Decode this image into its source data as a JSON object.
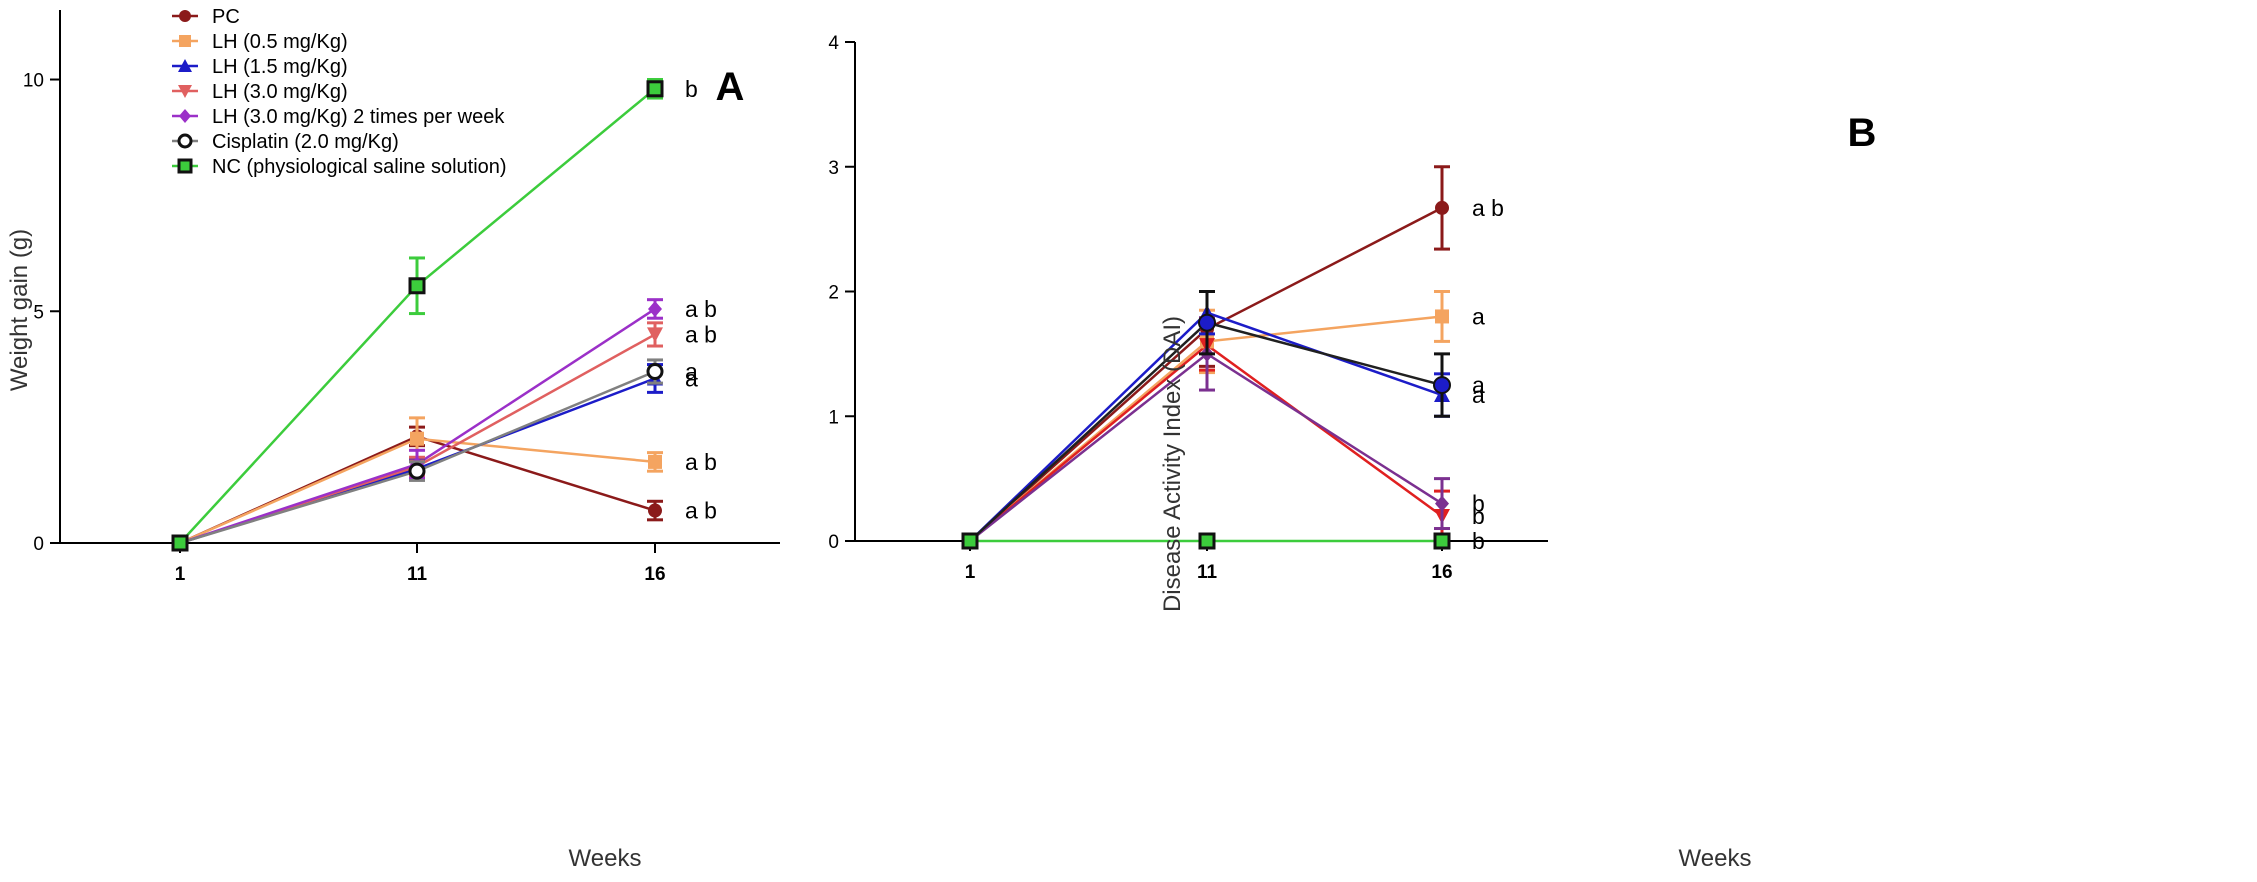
{
  "chart_data": [
    {
      "type": "line",
      "panel": "A",
      "title": "A",
      "xlabel": "Weeks",
      "ylabel": "Weight gain (g)",
      "x": [
        "1",
        "11",
        "16"
      ],
      "ylim": [
        0,
        11.5
      ],
      "yticks": [
        0,
        5,
        10
      ],
      "legend_position": "top-left",
      "series": [
        {
          "name": "PC",
          "color": "#8b1a1a",
          "marker": "circle",
          "values": [
            0,
            2.3,
            0.7
          ],
          "errors": [
            0,
            0.2,
            0.2
          ],
          "letters": [
            "",
            "",
            "a b"
          ]
        },
        {
          "name": "LH (0.5 mg/Kg)",
          "color": "#f4a460",
          "marker": "square",
          "values": [
            0,
            2.25,
            1.75
          ],
          "errors": [
            0,
            0.45,
            0.2
          ],
          "letters": [
            "",
            "",
            "a b"
          ]
        },
        {
          "name": "LH (1.5 mg/Kg)",
          "color": "#1c1cc8",
          "marker": "triangle-up",
          "values": [
            0,
            1.6,
            3.55
          ],
          "errors": [
            0,
            0.2,
            0.3
          ],
          "letters": [
            "",
            "",
            "a"
          ]
        },
        {
          "name": "LH (3.0 mg/Kg)",
          "color": "#e06060",
          "marker": "triangle-down",
          "values": [
            0,
            1.65,
            4.5
          ],
          "errors": [
            0,
            0.2,
            0.25
          ],
          "letters": [
            "",
            "",
            "a b"
          ]
        },
        {
          "name": "LH (3.0 mg/Kg) 2 times per week",
          "color": "#9b30c8",
          "marker": "diamond",
          "values": [
            0,
            1.7,
            5.05
          ],
          "errors": [
            0,
            0.3,
            0.2
          ],
          "letters": [
            "",
            "",
            "a b"
          ]
        },
        {
          "name": "Cisplatin (2.0 mg/Kg)",
          "color": "#808080",
          "marker": "circle-open",
          "values": [
            0,
            1.55,
            3.7
          ],
          "errors": [
            0,
            0.2,
            0.25
          ],
          "letters": [
            "",
            "",
            "a"
          ]
        },
        {
          "name": "NC (physiological saline solution)",
          "color": "#3ccc3c",
          "marker": "square-open",
          "values": [
            0,
            5.55,
            9.8
          ],
          "errors": [
            0,
            0.6,
            0.2
          ],
          "letters": [
            "",
            "",
            "b"
          ]
        }
      ]
    },
    {
      "type": "line",
      "panel": "B",
      "title": "B",
      "xlabel": "Weeks",
      "ylabel": "Disease Activity Index (DAI)",
      "x": [
        "1",
        "11",
        "16"
      ],
      "ylim": [
        0,
        4
      ],
      "yticks": [
        0,
        1,
        2,
        3,
        4
      ],
      "series": [
        {
          "name": "PC",
          "color": "#8b1a1a",
          "marker": "circle",
          "values": [
            0,
            1.7,
            2.67
          ],
          "errors": [
            0,
            0.3,
            0.33
          ],
          "letters": [
            "",
            "",
            "a b"
          ]
        },
        {
          "name": "LH (0.5 mg/Kg)",
          "color": "#f4a460",
          "marker": "square",
          "values": [
            0,
            1.6,
            1.8
          ],
          "errors": [
            0,
            0.25,
            0.2
          ],
          "letters": [
            "",
            "",
            "a"
          ]
        },
        {
          "name": "LH (1.5 mg/Kg)",
          "color": "#1c1cc8",
          "marker": "triangle-up",
          "values": [
            0,
            1.83,
            1.17
          ],
          "errors": [
            0,
            0.17,
            0.17
          ],
          "letters": [
            "",
            "",
            "a"
          ]
        },
        {
          "name": "LH (3.0 mg/Kg)",
          "color": "#e02020",
          "marker": "triangle-down",
          "values": [
            0,
            1.57,
            0.2
          ],
          "errors": [
            0,
            0.2,
            0.2
          ],
          "letters": [
            "",
            "",
            "b"
          ]
        },
        {
          "name": "LH (3.0 mg/Kg) 2 times per week",
          "color": "#7b3090",
          "marker": "diamond",
          "values": [
            0,
            1.5,
            0.3
          ],
          "errors": [
            0,
            0.29,
            0.2
          ],
          "letters": [
            "",
            "",
            "b"
          ]
        },
        {
          "name": "Cisplatin (2.0 mg/Kg)",
          "color": "#202020",
          "marker": "circle-open",
          "values": [
            0,
            1.75,
            1.25
          ],
          "errors": [
            0,
            0.25,
            0.25
          ],
          "letters": [
            "",
            "",
            "a"
          ]
        },
        {
          "name": "NC (physiological saline solution)",
          "color": "#3ccc3c",
          "marker": "square-open",
          "values": [
            0,
            0,
            0
          ],
          "errors": [
            0,
            0,
            0
          ],
          "letters": [
            "",
            "",
            "b"
          ]
        }
      ]
    }
  ]
}
